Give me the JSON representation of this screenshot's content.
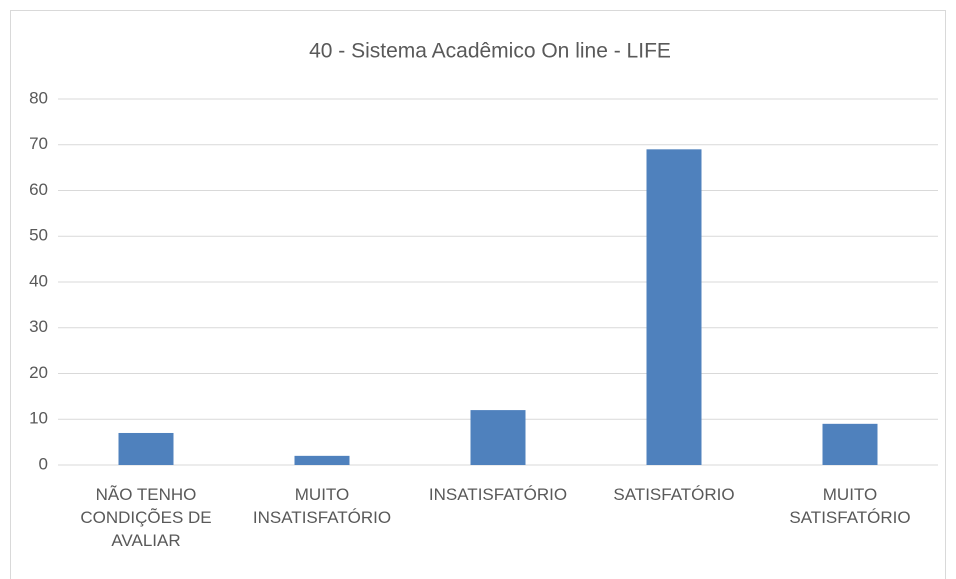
{
  "chart_data": {
    "type": "bar",
    "title": "40 - Sistema Acadêmico On line - LIFE",
    "categories": [
      [
        "NÃO TENHO",
        "CONDIÇÕES DE",
        "AVALIAR"
      ],
      [
        "MUITO",
        "INSATISFATÓRIO"
      ],
      [
        "INSATISFATÓRIO"
      ],
      [
        "SATISFATÓRIO"
      ],
      [
        "MUITO",
        "SATISFATÓRIO"
      ]
    ],
    "values": [
      7,
      2,
      12,
      69,
      9
    ],
    "color": "#4f81bd",
    "ylim": [
      0,
      80
    ],
    "yticks": [
      0,
      10,
      20,
      30,
      40,
      50,
      60,
      70,
      80
    ],
    "grid": true
  }
}
